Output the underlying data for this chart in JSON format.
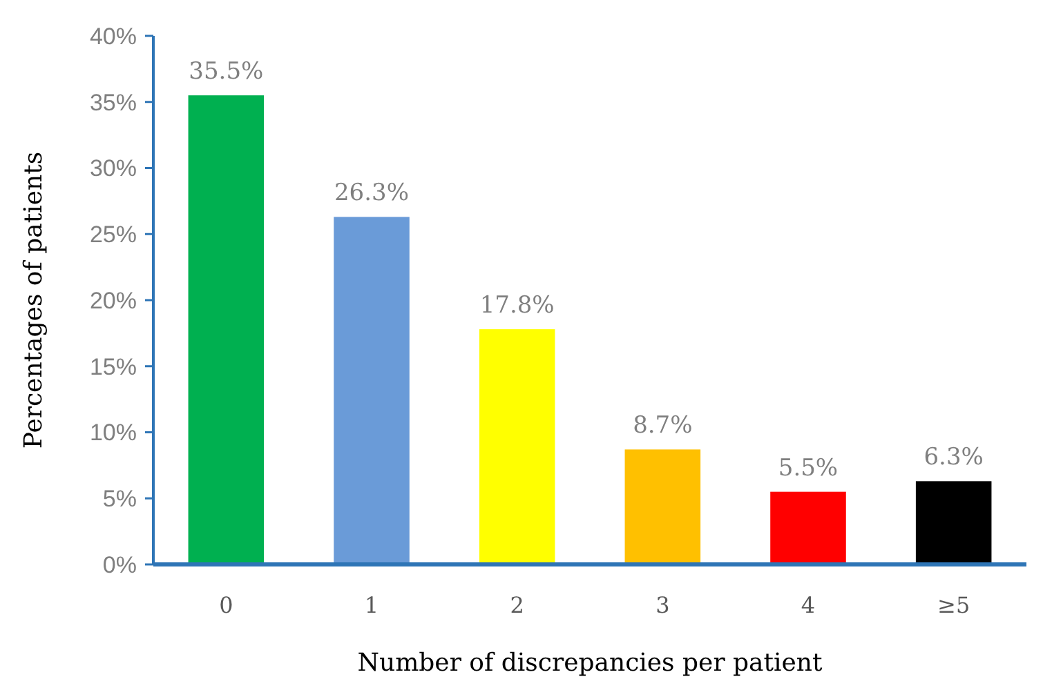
{
  "chart_data": {
    "type": "bar",
    "xlabel": "Number of discrepancies per patient",
    "ylabel": "Percentages of patients",
    "categories": [
      "0",
      "1",
      "2",
      "3",
      "4",
      "≥5"
    ],
    "values": [
      35.5,
      26.3,
      17.8,
      8.7,
      5.5,
      6.3
    ],
    "colors": [
      "#00b050",
      "#6a9bd8",
      "#ffff00",
      "#ffc000",
      "#ff0000",
      "#000000"
    ],
    "value_labels": [
      "35.5%",
      "26.3%",
      "17.8%",
      "8.7%",
      "5.5%",
      "6.3%"
    ],
    "ylim": [
      0,
      40
    ],
    "yticks": [
      {
        "value": 0,
        "label": "0%"
      },
      {
        "value": 5,
        "label": "5%"
      },
      {
        "value": 10,
        "label": "10%"
      },
      {
        "value": 15,
        "label": "15%"
      },
      {
        "value": 20,
        "label": "20%"
      },
      {
        "value": 25,
        "label": "25%"
      },
      {
        "value": 30,
        "label": "30%"
      },
      {
        "value": 35,
        "label": "35%"
      },
      {
        "value": 40,
        "label": "40%"
      }
    ],
    "grid": false
  }
}
